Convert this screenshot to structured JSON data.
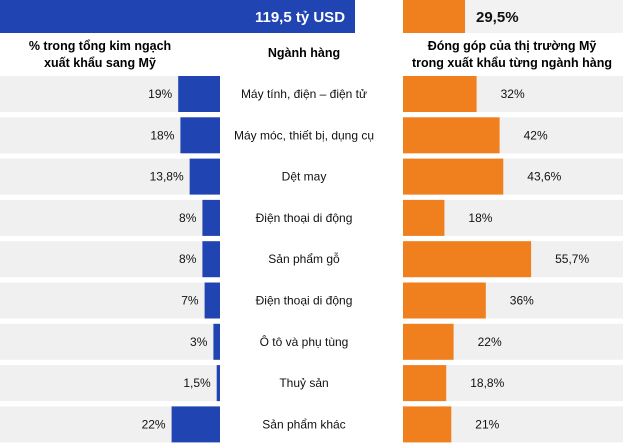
{
  "chart_data": {
    "type": "bar",
    "headline": {
      "left": "119,5 tỷ USD",
      "right": "29,5%"
    },
    "left_header": [
      "% trong tổng kim ngạch",
      "xuất khẩu sang Mỹ"
    ],
    "center_header": "Ngành hàng",
    "right_header": [
      "Đóng góp của thị trường Mỹ",
      "trong xuất khẩu từng ngành hàng"
    ],
    "categories": [
      "Máy tính, điện – điện tử",
      "Máy móc, thiết bị, dụng cụ",
      "Dệt may",
      "Điện thoại di động",
      "Sản phẩm gỗ",
      "Điện thoại di động",
      "Ô tô và phụ tùng",
      "Thuỷ sản",
      "Sản phẩm khác"
    ],
    "series": [
      {
        "values": [
          19,
          18,
          13.8,
          8,
          8,
          7,
          3,
          1.5,
          22
        ],
        "labels": [
          "19%",
          "18%",
          "13,8%",
          "8%",
          "8%",
          "7%",
          "3%",
          "1,5%",
          "22%"
        ],
        "color": "#2045b3"
      },
      {
        "values": [
          32,
          42,
          43.6,
          18,
          55.7,
          36,
          22,
          18.8,
          21
        ],
        "labels": [
          "32%",
          "42%",
          "43,6%",
          "18%",
          "55,7%",
          "36%",
          "22%",
          "18,8%",
          "21%"
        ],
        "color": "#f07f1e"
      }
    ],
    "row_background": "#f0f0f0"
  }
}
